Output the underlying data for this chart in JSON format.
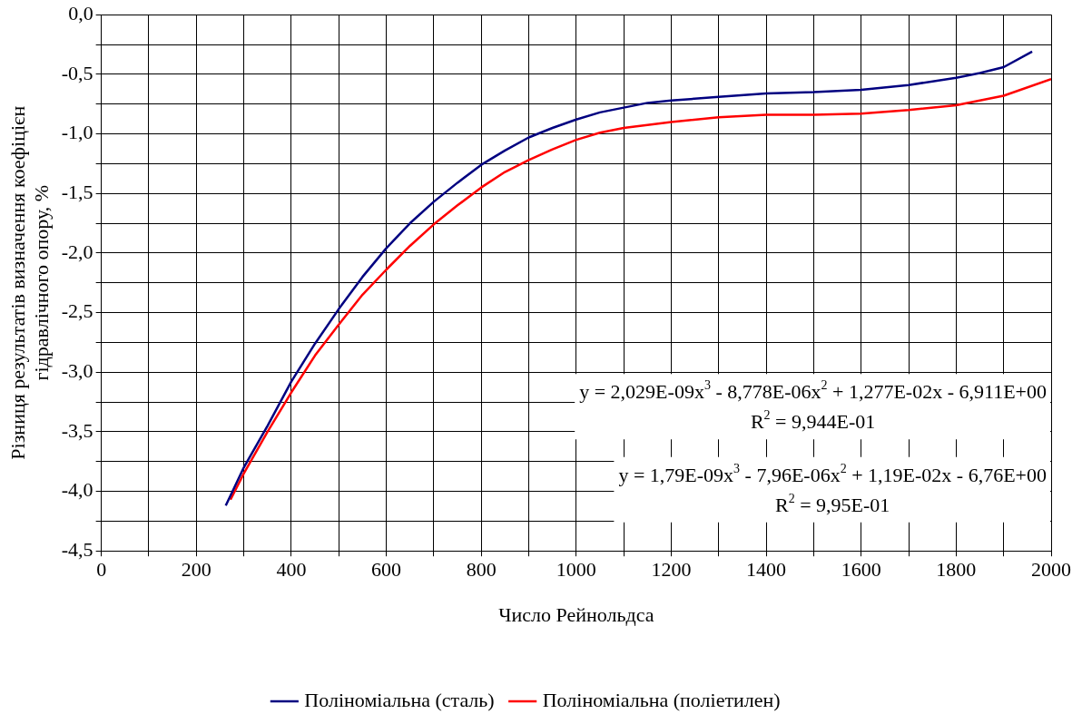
{
  "chart_data": {
    "type": "line",
    "xlabel": "Число Рейнольдса",
    "ylabel": "Різниця результатів визначення коефіцієн\nгідравлічного опору, %",
    "series": [
      {
        "name": "Поліноміальна (сталь)",
        "color": "#000080",
        "x": [
          262,
          300,
          350,
          400,
          450,
          500,
          550,
          600,
          650,
          700,
          750,
          800,
          850,
          900,
          950,
          1000,
          1050,
          1100,
          1150,
          1200,
          1300,
          1400,
          1500,
          1600,
          1700,
          1800,
          1850,
          1900,
          1960
        ],
        "values": [
          -4.12,
          -3.8,
          -3.45,
          -3.08,
          -2.76,
          -2.47,
          -2.2,
          -1.96,
          -1.75,
          -1.57,
          -1.41,
          -1.26,
          -1.14,
          -1.03,
          -0.95,
          -0.88,
          -0.82,
          -0.78,
          -0.74,
          -0.72,
          -0.69,
          -0.66,
          -0.65,
          -0.63,
          -0.59,
          -0.53,
          -0.49,
          -0.44,
          -0.31
        ]
      },
      {
        "name": "Поліноміальна (поліетилен)",
        "color": "#ff0000",
        "x": [
          272,
          300,
          350,
          400,
          450,
          500,
          550,
          600,
          650,
          700,
          750,
          800,
          850,
          900,
          950,
          1000,
          1050,
          1100,
          1200,
          1300,
          1400,
          1500,
          1600,
          1700,
          1800,
          1900,
          2000
        ],
        "values": [
          -4.07,
          -3.85,
          -3.5,
          -3.17,
          -2.86,
          -2.6,
          -2.35,
          -2.14,
          -1.94,
          -1.76,
          -1.6,
          -1.45,
          -1.32,
          -1.22,
          -1.13,
          -1.05,
          -0.99,
          -0.95,
          -0.9,
          -0.86,
          -0.84,
          -0.84,
          -0.83,
          -0.8,
          -0.76,
          -0.68,
          -0.54
        ]
      }
    ],
    "xlim": [
      0,
      2000
    ],
    "xticks": [
      0,
      {
        "value": 100,
        "label": null
      },
      200,
      {
        "value": 300,
        "label": null
      },
      400,
      {
        "value": 500,
        "label": null
      },
      600,
      {
        "value": 700,
        "label": null
      },
      800,
      {
        "value": 900,
        "label": null
      },
      1000,
      {
        "value": 1100,
        "label": null
      },
      1200,
      {
        "value": 1300,
        "label": null
      },
      1400,
      {
        "value": 1500,
        "label": null
      },
      1600,
      {
        "value": 1700,
        "label": null
      },
      1800,
      {
        "value": 1900,
        "label": null
      },
      2000
    ],
    "ylim": [
      -4.5,
      0
    ],
    "yticks": [
      {
        "value": -4.5,
        "label": "-4,5"
      },
      {
        "value": -4.25,
        "label": null
      },
      {
        "value": -4,
        "label": "-4,0"
      },
      {
        "value": -3.75,
        "label": null
      },
      {
        "value": -3.5,
        "label": "-3,5"
      },
      {
        "value": -3.25,
        "label": null
      },
      {
        "value": -3,
        "label": "-3,0"
      },
      {
        "value": -2.75,
        "label": null
      },
      {
        "value": -2.5,
        "label": "-2,5"
      },
      {
        "value": -2.25,
        "label": null
      },
      {
        "value": -2,
        "label": "-2,0"
      },
      {
        "value": -1.75,
        "label": null
      },
      {
        "value": -1.5,
        "label": "-1,5"
      },
      {
        "value": -1.25,
        "label": null
      },
      {
        "value": -1,
        "label": "-1,0"
      },
      {
        "value": -0.75,
        "label": null
      },
      {
        "value": -0.5,
        "label": "-0,5"
      },
      {
        "value": -0.25,
        "label": null
      },
      {
        "value": 0,
        "label": "0,0"
      }
    ],
    "annotations": [
      "y = 2,029E-09x$^{3}$ - 8,778E-06x$^{2}$ + 1,277E-02x - 6,911E+00",
      "R$^{2}$ = 9,944E-01",
      "y = 1,79E-09x$^{3}$ - 7,96E-06x$^{2}$ + 1,19E-02x - 6,76E+00",
      "R$^{2}$ = 9,95E-01"
    ],
    "grid": true,
    "legend": "bottom",
    "marker": "none",
    "line_style": "solid"
  }
}
